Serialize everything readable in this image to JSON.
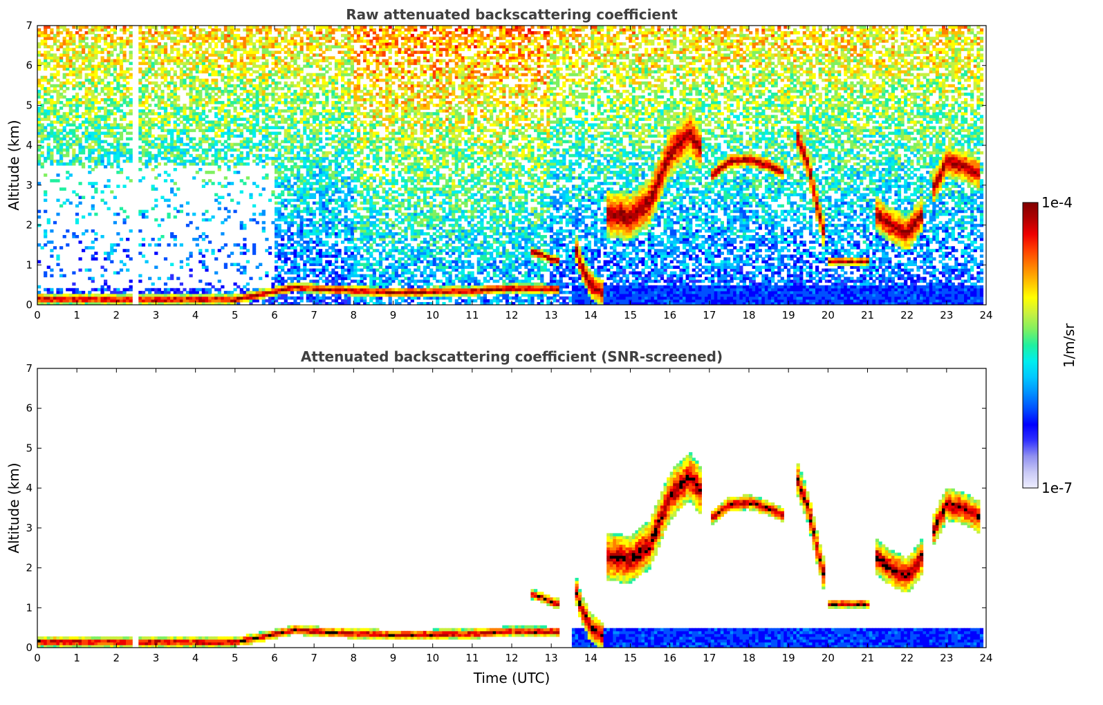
{
  "chart_data": [
    {
      "type": "heatmap",
      "title": "Raw attenuated backscattering coefficient",
      "xlabel": "",
      "ylabel": "Altitude (km)",
      "xlim": [
        0,
        24
      ],
      "ylim": [
        0,
        7
      ],
      "xticks": [
        "0",
        "1",
        "2",
        "3",
        "4",
        "5",
        "6",
        "7",
        "8",
        "9",
        "10",
        "11",
        "12",
        "13",
        "14",
        "15",
        "16",
        "17",
        "18",
        "19",
        "20",
        "21",
        "22",
        "23",
        "24"
      ],
      "yticks": [
        "0",
        "1",
        "2",
        "3",
        "4",
        "5",
        "6",
        "7"
      ],
      "features": {
        "data_gap_time": 2.5,
        "data_end_time": 23.85,
        "boundary_layer": [
          [
            0,
            0.15
          ],
          [
            2,
            0.14
          ],
          [
            5,
            0.14
          ],
          [
            5.8,
            0.3
          ],
          [
            6.5,
            0.45
          ],
          [
            7.5,
            0.38
          ],
          [
            9,
            0.32
          ],
          [
            11,
            0.35
          ],
          [
            12,
            0.42
          ],
          [
            13.2,
            0.4
          ]
        ],
        "low_cloud_13_5_14_5": [
          [
            13.6,
            1.5
          ],
          [
            13.75,
            1.0
          ],
          [
            14.0,
            0.5
          ],
          [
            14.3,
            0.3
          ]
        ],
        "mid_cloud_12_5_13_2": [
          [
            12.5,
            1.35
          ],
          [
            12.8,
            1.25
          ],
          [
            13.0,
            1.15
          ],
          [
            13.2,
            1.1
          ]
        ],
        "cloud_14_4_17": [
          [
            14.4,
            2.3
          ],
          [
            15.0,
            2.2
          ],
          [
            15.5,
            2.6
          ],
          [
            16.0,
            3.8
          ],
          [
            16.5,
            4.3
          ],
          [
            16.8,
            3.9
          ]
        ],
        "cloud_17_19": [
          [
            17.0,
            3.2
          ],
          [
            17.5,
            3.6
          ],
          [
            18.0,
            3.65
          ],
          [
            18.5,
            3.5
          ],
          [
            18.9,
            3.3
          ]
        ],
        "cirrus_19_20": [
          [
            19.2,
            4.3
          ],
          [
            19.5,
            3.5
          ],
          [
            19.7,
            2.6
          ],
          [
            19.9,
            1.8
          ]
        ],
        "cloud_20_21": [
          [
            20.0,
            1.1
          ],
          [
            20.5,
            1.1
          ],
          [
            21.0,
            1.1
          ]
        ],
        "cloud_21_22_5": [
          [
            21.2,
            2.3
          ],
          [
            21.6,
            2.0
          ],
          [
            22.0,
            1.8
          ],
          [
            22.4,
            2.3
          ]
        ],
        "cloud_22_5_24": [
          [
            22.6,
            2.8
          ],
          [
            23.0,
            3.6
          ],
          [
            23.4,
            3.5
          ],
          [
            23.8,
            3.3
          ]
        ]
      }
    },
    {
      "type": "heatmap",
      "title": "Attenuated backscattering coefficient (SNR-screened)",
      "xlabel": "Time (UTC)",
      "ylabel": "Altitude (km)",
      "xlim": [
        0,
        24
      ],
      "ylim": [
        0,
        7
      ],
      "xticks": [
        "0",
        "1",
        "2",
        "3",
        "4",
        "5",
        "6",
        "7",
        "8",
        "9",
        "10",
        "11",
        "12",
        "13",
        "14",
        "15",
        "16",
        "17",
        "18",
        "19",
        "20",
        "21",
        "22",
        "23",
        "24"
      ],
      "yticks": [
        "0",
        "1",
        "2",
        "3",
        "4",
        "5",
        "6",
        "7"
      ],
      "features": {
        "data_gap_time": 2.5,
        "data_end_time": 23.85,
        "screened": true
      }
    }
  ],
  "colorbar": {
    "max_label": "1e-4",
    "min_label": "1e-7",
    "unit_label": "1/m/sr",
    "colors": [
      "#eeeeff",
      "#c8c8f5",
      "#9090f0",
      "#3030ff",
      "#0000ff",
      "#0050ff",
      "#0090ff",
      "#00c8ff",
      "#00eeee",
      "#20f0a0",
      "#80f060",
      "#c8f040",
      "#ffff00",
      "#ffc000",
      "#ff8000",
      "#ff4000",
      "#ee0000",
      "#b00000",
      "#800000"
    ]
  }
}
